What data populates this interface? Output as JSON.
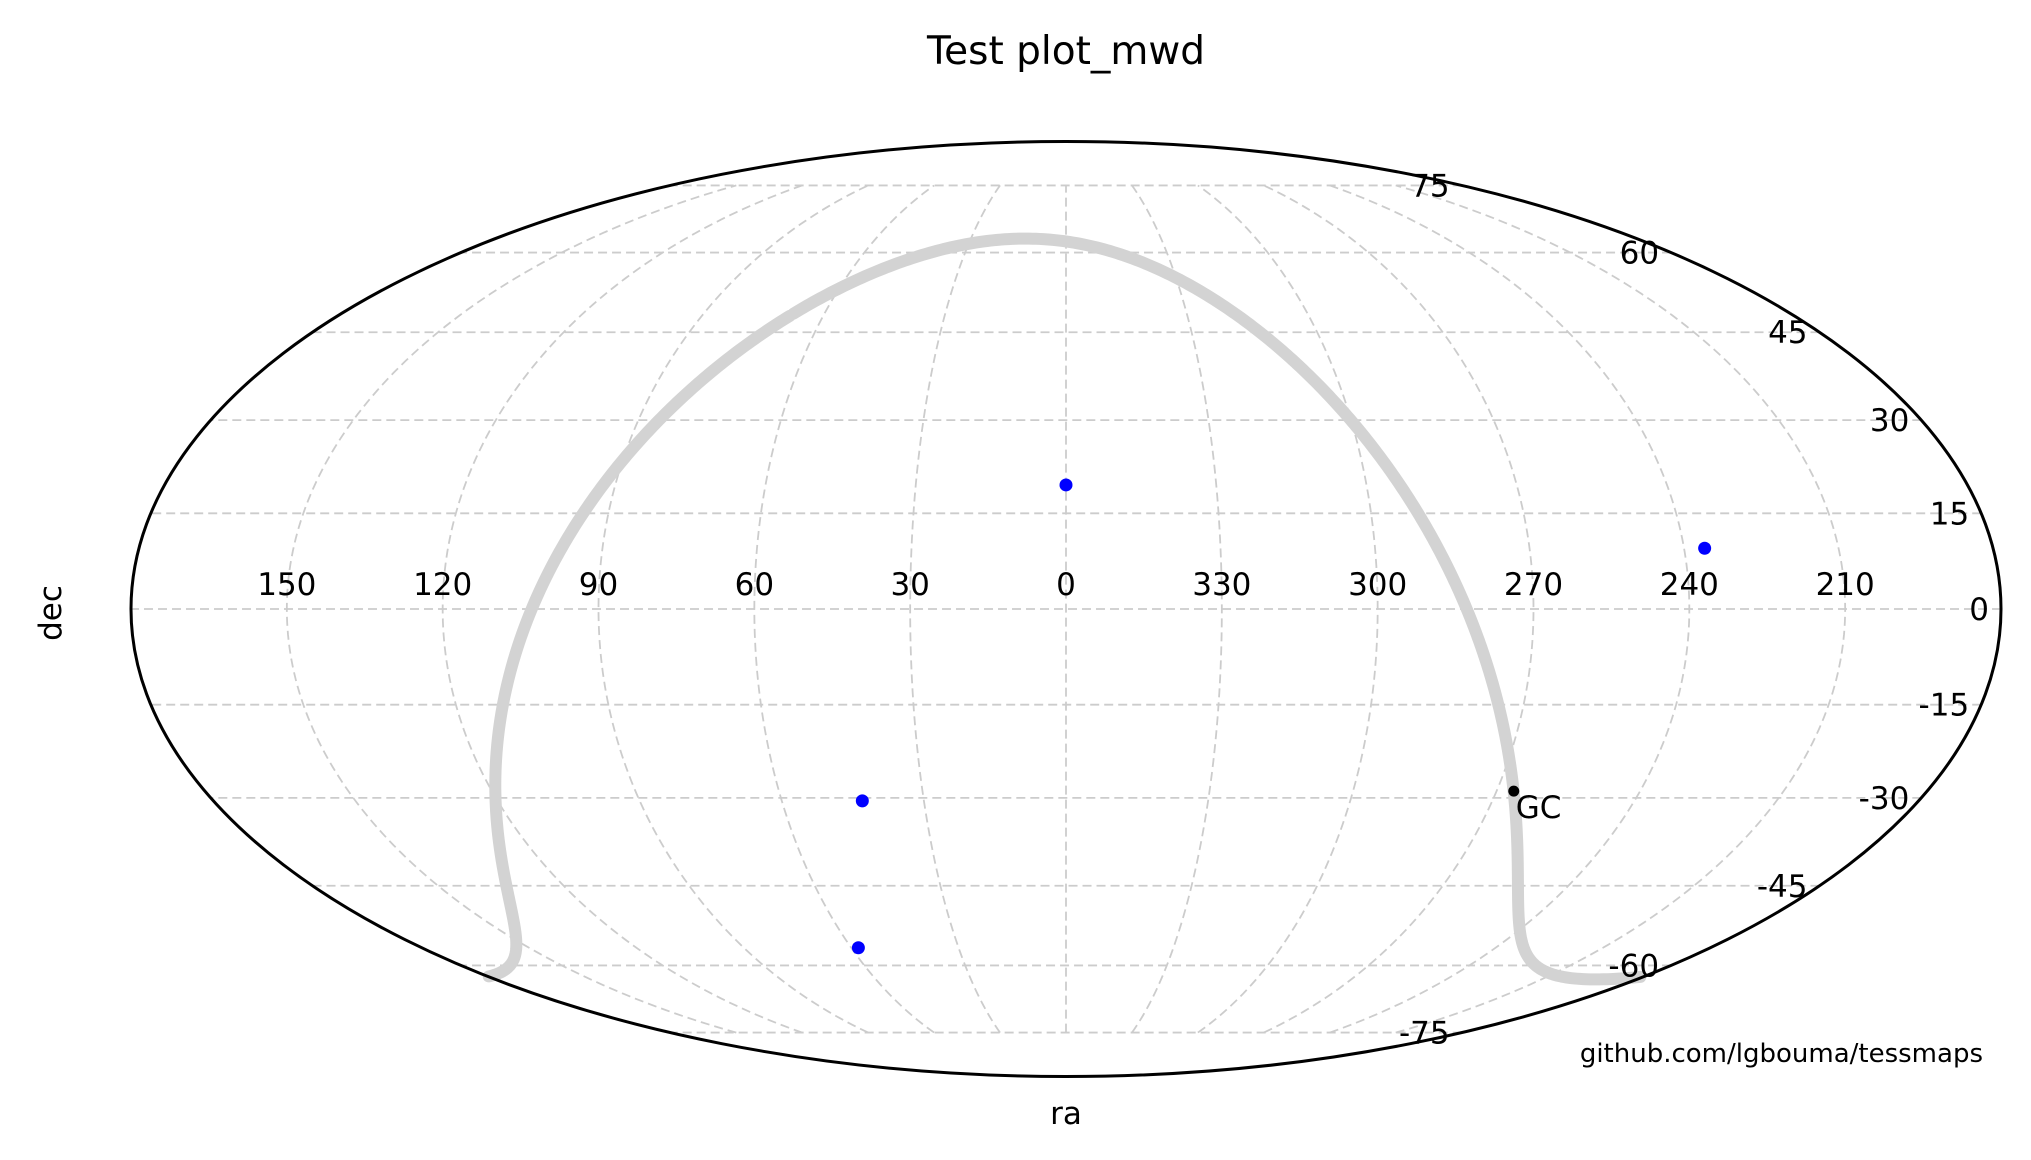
{
  "chart_data": {
    "type": "scatter",
    "projection": "mollweide",
    "title": "Test plot_mwd",
    "xlabel": "ra",
    "ylabel": "dec",
    "credit": "github.com/lgbouma/tessmaps",
    "grid": true,
    "ra_ticks": [
      150,
      120,
      90,
      60,
      30,
      0,
      330,
      300,
      270,
      240,
      210
    ],
    "dec_ticks": [
      75,
      60,
      45,
      30,
      15,
      0,
      -15,
      -30,
      -45,
      -60,
      -75
    ],
    "ra_tick_labels": [
      "150",
      "120",
      "90",
      "60",
      "30",
      "0",
      "330",
      "300",
      "270",
      "240",
      "210"
    ],
    "dec_tick_labels": [
      "75",
      "60",
      "45",
      "30",
      "15",
      "0",
      "-15",
      "-30",
      "-45",
      "-60",
      "-75"
    ],
    "points": [
      {
        "ra": 0,
        "dec": 19.5,
        "color": "#0000ff"
      },
      {
        "ra": 236,
        "dec": 9.5,
        "color": "#0000ff"
      },
      {
        "ra": 43,
        "dec": -30.5,
        "color": "#0000ff"
      },
      {
        "ra": 58,
        "dec": -56.5,
        "color": "#0000ff"
      }
    ],
    "galactic_plane": {
      "color": "#d3d3d3"
    },
    "marker": {
      "label": "GC",
      "ra": 266.4,
      "dec": -28.9,
      "color": "#000000"
    },
    "colors": {
      "grid": "#cccccc",
      "outline": "#000000"
    }
  }
}
